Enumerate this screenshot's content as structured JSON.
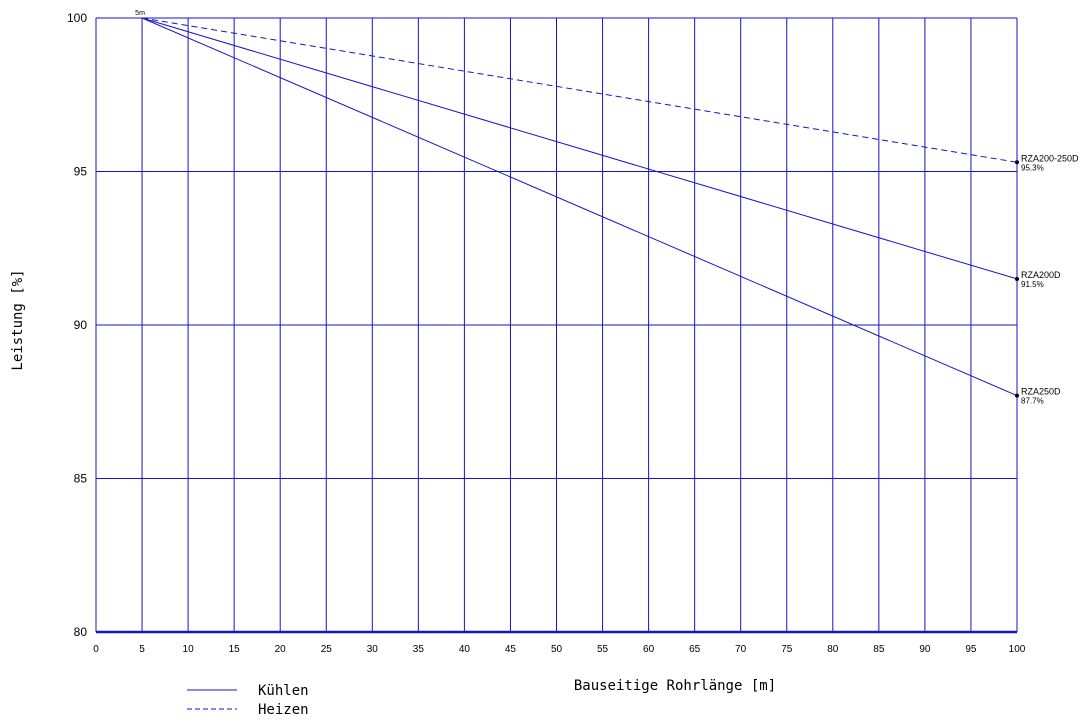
{
  "chart_data": {
    "type": "line",
    "xlabel": "Bauseitige Rohrlänge [m]",
    "ylabel": "Leistung [%]",
    "xlim": [
      0,
      100
    ],
    "ylim": [
      80,
      100
    ],
    "x_ticks": [
      0,
      5,
      10,
      15,
      20,
      25,
      30,
      35,
      40,
      45,
      50,
      55,
      60,
      65,
      70,
      75,
      80,
      85,
      90,
      95,
      100
    ],
    "y_ticks": [
      80,
      85,
      90,
      95,
      100
    ],
    "grid": true,
    "colors": {
      "line": "#1515c8",
      "grid": "#1515c8",
      "marker": "#000000"
    },
    "start_annotation": {
      "x": 5,
      "y": 100,
      "text": "5m"
    },
    "series": [
      {
        "name": "RZA200-250D",
        "mode": "Heizen",
        "dash": true,
        "x": [
          5,
          100
        ],
        "y": [
          100,
          95.3
        ],
        "end_value_label": "95.3%"
      },
      {
        "name": "RZA200D",
        "mode": "Kühlen",
        "dash": false,
        "x": [
          5,
          100
        ],
        "y": [
          100,
          91.5
        ],
        "end_value_label": "91.5%"
      },
      {
        "name": "RZA250D",
        "mode": "Kühlen",
        "dash": false,
        "x": [
          5,
          100
        ],
        "y": [
          100,
          87.7
        ],
        "end_value_label": "87.7%"
      }
    ],
    "legend": {
      "placement": "bottom-left",
      "entries": [
        {
          "label": "Kühlen",
          "dash": false
        },
        {
          "label": "Heizen",
          "dash": true
        }
      ]
    }
  }
}
